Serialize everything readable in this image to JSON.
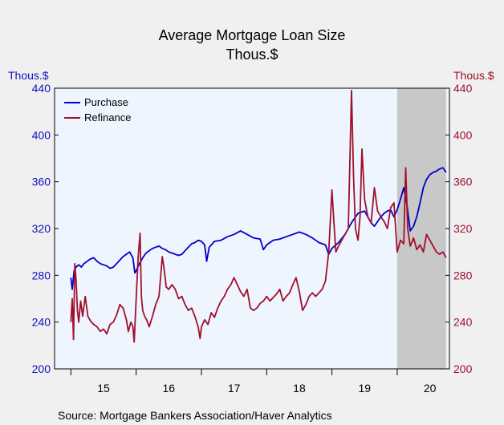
{
  "chart_data": {
    "type": "line",
    "title": "Average Mortgage Loan Size",
    "subtitle": "Thous.$",
    "left_axis_unit": "Thous.$",
    "right_axis_unit": "Thous.$",
    "ylim": [
      200,
      440
    ],
    "yticks": [
      "200",
      "240",
      "280",
      "320",
      "360",
      "400",
      "440"
    ],
    "x_ticks": [
      "15",
      "16",
      "17",
      "18",
      "19",
      "20"
    ],
    "legend_placement": "top-left",
    "shaded_region": {
      "start_year": 2020.0,
      "end_year": 2020.75
    },
    "series": [
      {
        "name": "Purchase",
        "color": "#0000cc",
        "points": [
          [
            2015.0,
            278
          ],
          [
            2015.02,
            268
          ],
          [
            2015.05,
            284
          ],
          [
            2015.08,
            287
          ],
          [
            2015.12,
            289
          ],
          [
            2015.16,
            287
          ],
          [
            2015.2,
            290
          ],
          [
            2015.25,
            292
          ],
          [
            2015.3,
            294
          ],
          [
            2015.35,
            295
          ],
          [
            2015.4,
            292
          ],
          [
            2015.45,
            290
          ],
          [
            2015.5,
            289
          ],
          [
            2015.55,
            288
          ],
          [
            2015.6,
            286
          ],
          [
            2015.65,
            287
          ],
          [
            2015.7,
            290
          ],
          [
            2015.75,
            293
          ],
          [
            2015.8,
            296
          ],
          [
            2015.85,
            298
          ],
          [
            2015.9,
            300
          ],
          [
            2015.95,
            295
          ],
          [
            2015.98,
            282
          ],
          [
            2016.0,
            284
          ],
          [
            2016.05,
            290
          ],
          [
            2016.1,
            295
          ],
          [
            2016.15,
            299
          ],
          [
            2016.2,
            301
          ],
          [
            2016.25,
            303
          ],
          [
            2016.3,
            304
          ],
          [
            2016.35,
            305
          ],
          [
            2016.4,
            303
          ],
          [
            2016.45,
            302
          ],
          [
            2016.5,
            300
          ],
          [
            2016.55,
            299
          ],
          [
            2016.6,
            298
          ],
          [
            2016.65,
            297
          ],
          [
            2016.7,
            298
          ],
          [
            2016.75,
            301
          ],
          [
            2016.8,
            304
          ],
          [
            2016.85,
            307
          ],
          [
            2016.9,
            308
          ],
          [
            2016.95,
            310
          ],
          [
            2017.0,
            309
          ],
          [
            2017.05,
            306
          ],
          [
            2017.08,
            292
          ],
          [
            2017.12,
            304
          ],
          [
            2017.2,
            309
          ],
          [
            2017.3,
            310
          ],
          [
            2017.4,
            313
          ],
          [
            2017.5,
            315
          ],
          [
            2017.6,
            318
          ],
          [
            2017.7,
            315
          ],
          [
            2017.8,
            312
          ],
          [
            2017.9,
            311
          ],
          [
            2017.95,
            302
          ],
          [
            2018.0,
            306
          ],
          [
            2018.1,
            310
          ],
          [
            2018.2,
            311
          ],
          [
            2018.3,
            313
          ],
          [
            2018.4,
            315
          ],
          [
            2018.5,
            317
          ],
          [
            2018.6,
            315
          ],
          [
            2018.7,
            312
          ],
          [
            2018.8,
            308
          ],
          [
            2018.9,
            306
          ],
          [
            2018.95,
            298
          ],
          [
            2019.0,
            303
          ],
          [
            2019.1,
            308
          ],
          [
            2019.2,
            315
          ],
          [
            2019.3,
            325
          ],
          [
            2019.4,
            333
          ],
          [
            2019.5,
            335
          ],
          [
            2019.55,
            330
          ],
          [
            2019.6,
            325
          ],
          [
            2019.65,
            322
          ],
          [
            2019.7,
            326
          ],
          [
            2019.75,
            330
          ],
          [
            2019.8,
            333
          ],
          [
            2019.85,
            335
          ],
          [
            2019.9,
            336
          ],
          [
            2019.95,
            330
          ],
          [
            2020.0,
            336
          ],
          [
            2020.05,
            345
          ],
          [
            2020.1,
            355
          ],
          [
            2020.15,
            340
          ],
          [
            2020.2,
            318
          ],
          [
            2020.25,
            322
          ],
          [
            2020.3,
            330
          ],
          [
            2020.35,
            342
          ],
          [
            2020.4,
            355
          ],
          [
            2020.45,
            362
          ],
          [
            2020.5,
            366
          ],
          [
            2020.55,
            368
          ],
          [
            2020.6,
            369
          ],
          [
            2020.65,
            371
          ],
          [
            2020.7,
            372
          ],
          [
            2020.75,
            368
          ]
        ]
      },
      {
        "name": "Refinance",
        "color": "#a0102a",
        "points": [
          [
            2015.0,
            240
          ],
          [
            2015.02,
            260
          ],
          [
            2015.04,
            225
          ],
          [
            2015.06,
            290
          ],
          [
            2015.08,
            276
          ],
          [
            2015.1,
            250
          ],
          [
            2015.12,
            240
          ],
          [
            2015.15,
            258
          ],
          [
            2015.18,
            245
          ],
          [
            2015.22,
            262
          ],
          [
            2015.26,
            245
          ],
          [
            2015.3,
            241
          ],
          [
            2015.35,
            238
          ],
          [
            2015.4,
            236
          ],
          [
            2015.45,
            232
          ],
          [
            2015.5,
            234
          ],
          [
            2015.55,
            230
          ],
          [
            2015.6,
            238
          ],
          [
            2015.65,
            240
          ],
          [
            2015.7,
            246
          ],
          [
            2015.75,
            255
          ],
          [
            2015.8,
            252
          ],
          [
            2015.85,
            242
          ],
          [
            2015.88,
            232
          ],
          [
            2015.92,
            240
          ],
          [
            2015.95,
            236
          ],
          [
            2015.97,
            223
          ],
          [
            2016.0,
            260
          ],
          [
            2016.03,
            295
          ],
          [
            2016.06,
            316
          ],
          [
            2016.08,
            262
          ],
          [
            2016.1,
            250
          ],
          [
            2016.13,
            245
          ],
          [
            2016.16,
            242
          ],
          [
            2016.2,
            236
          ],
          [
            2016.25,
            245
          ],
          [
            2016.3,
            255
          ],
          [
            2016.35,
            262
          ],
          [
            2016.4,
            296
          ],
          [
            2016.43,
            285
          ],
          [
            2016.46,
            270
          ],
          [
            2016.5,
            268
          ],
          [
            2016.55,
            272
          ],
          [
            2016.6,
            268
          ],
          [
            2016.65,
            260
          ],
          [
            2016.7,
            262
          ],
          [
            2016.75,
            255
          ],
          [
            2016.8,
            250
          ],
          [
            2016.85,
            252
          ],
          [
            2016.9,
            245
          ],
          [
            2016.95,
            236
          ],
          [
            2016.98,
            226
          ],
          [
            2017.0,
            236
          ],
          [
            2017.05,
            242
          ],
          [
            2017.1,
            238
          ],
          [
            2017.15,
            248
          ],
          [
            2017.2,
            244
          ],
          [
            2017.25,
            252
          ],
          [
            2017.3,
            258
          ],
          [
            2017.35,
            262
          ],
          [
            2017.4,
            268
          ],
          [
            2017.45,
            272
          ],
          [
            2017.5,
            278
          ],
          [
            2017.55,
            272
          ],
          [
            2017.6,
            266
          ],
          [
            2017.65,
            262
          ],
          [
            2017.7,
            268
          ],
          [
            2017.75,
            252
          ],
          [
            2017.8,
            250
          ],
          [
            2017.85,
            252
          ],
          [
            2017.9,
            256
          ],
          [
            2017.95,
            258
          ],
          [
            2018.0,
            262
          ],
          [
            2018.05,
            258
          ],
          [
            2018.1,
            261
          ],
          [
            2018.15,
            264
          ],
          [
            2018.2,
            268
          ],
          [
            2018.25,
            258
          ],
          [
            2018.3,
            262
          ],
          [
            2018.35,
            265
          ],
          [
            2018.4,
            272
          ],
          [
            2018.45,
            278
          ],
          [
            2018.5,
            266
          ],
          [
            2018.55,
            250
          ],
          [
            2018.6,
            255
          ],
          [
            2018.65,
            262
          ],
          [
            2018.7,
            265
          ],
          [
            2018.75,
            262
          ],
          [
            2018.8,
            265
          ],
          [
            2018.85,
            268
          ],
          [
            2018.9,
            275
          ],
          [
            2018.95,
            300
          ],
          [
            2019.0,
            353
          ],
          [
            2019.03,
            325
          ],
          [
            2019.06,
            300
          ],
          [
            2019.1,
            305
          ],
          [
            2019.15,
            310
          ],
          [
            2019.2,
            315
          ],
          [
            2019.25,
            320
          ],
          [
            2019.3,
            438
          ],
          [
            2019.33,
            365
          ],
          [
            2019.36,
            320
          ],
          [
            2019.4,
            310
          ],
          [
            2019.43,
            330
          ],
          [
            2019.46,
            388
          ],
          [
            2019.5,
            345
          ],
          [
            2019.55,
            330
          ],
          [
            2019.6,
            325
          ],
          [
            2019.65,
            355
          ],
          [
            2019.7,
            335
          ],
          [
            2019.75,
            330
          ],
          [
            2019.8,
            326
          ],
          [
            2019.85,
            320
          ],
          [
            2019.9,
            338
          ],
          [
            2019.95,
            342
          ],
          [
            2020.0,
            300
          ],
          [
            2020.05,
            310
          ],
          [
            2020.1,
            307
          ],
          [
            2020.13,
            372
          ],
          [
            2020.16,
            320
          ],
          [
            2020.2,
            305
          ],
          [
            2020.25,
            312
          ],
          [
            2020.3,
            302
          ],
          [
            2020.35,
            306
          ],
          [
            2020.4,
            300
          ],
          [
            2020.45,
            315
          ],
          [
            2020.5,
            310
          ],
          [
            2020.55,
            305
          ],
          [
            2020.6,
            300
          ],
          [
            2020.65,
            298
          ],
          [
            2020.7,
            300
          ],
          [
            2020.75,
            295
          ]
        ]
      }
    ]
  },
  "source_text": "Source:  Mortgage Bankers Association/Haver Analytics"
}
